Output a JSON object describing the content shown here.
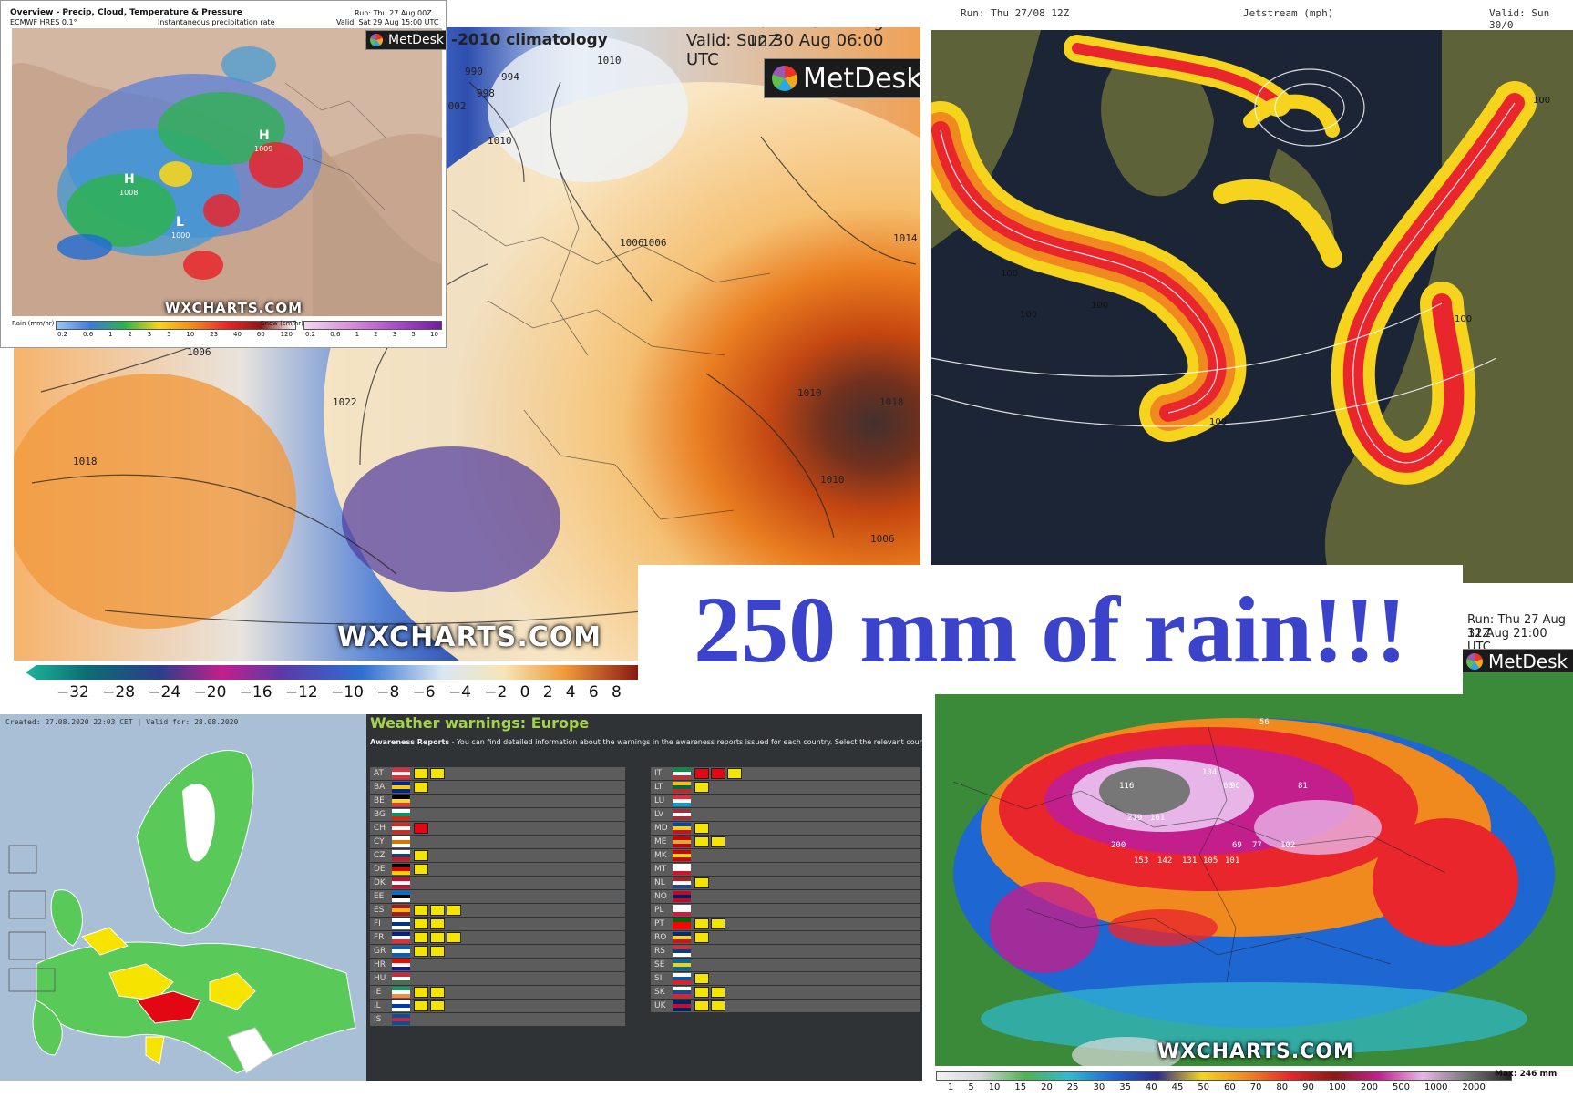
{
  "temp_anomaly_panel": {
    "title_fragment": "-2010 climatology",
    "run": "Run: Thu 27 Aug 12Z",
    "valid": "Valid: Sun 30 Aug 06:00 UTC",
    "logo": "MetDesk",
    "watermark": "WXCHARTS.COM",
    "isobar_labels": [
      "990",
      "994",
      "998",
      "1002",
      "1006",
      "1010",
      "1010",
      "1006",
      "1010",
      "1014",
      "1018",
      "1018",
      "1022",
      "1006",
      "1010",
      "1006"
    ],
    "scale_ticks": [
      "−32",
      "−28",
      "−24",
      "−20",
      "−16",
      "−12",
      "−10",
      "−8",
      "−6",
      "−4",
      "−2",
      "0",
      "2",
      "4",
      "6",
      "8"
    ]
  },
  "precip_inset": {
    "title": "Overview - Precip, Cloud, Temperature & Pressure",
    "subtitle": "ECMWF HRES 0.1°",
    "subtitle2": "Instantaneous precipitation rate",
    "run": "Run: Thu 27 Aug 00Z",
    "valid": "Valid: Sat 29 Aug 15:00 UTC",
    "logo": "MetDesk",
    "watermark": "WXCHARTS.COM",
    "pressure_labels": [
      "H",
      "1009",
      "H",
      "1008",
      "L",
      "1000"
    ],
    "rain_label": "Rain (mm/hr)",
    "snow_label": "Snow (cm/hr)",
    "rain_ticks": [
      "0.2",
      "0.6",
      "1",
      "2",
      "3",
      "5",
      "10",
      "23",
      "40",
      "60",
      "120"
    ],
    "snow_ticks": [
      "0.2",
      "0.6",
      "1",
      "2",
      "3",
      "5",
      "10"
    ]
  },
  "jetstream_panel": {
    "run": "Run: Thu 27/08 12Z",
    "title": "Jetstream (mph)",
    "valid": "Valid: Sun 30/0",
    "labels": [
      "100",
      "100",
      "100",
      "100",
      "100",
      "100"
    ]
  },
  "headline": {
    "text": "250 mm of rain!!!"
  },
  "rain_total_panel": {
    "run": "Run: Thu 27 Aug 12Z",
    "valid": "31 Aug 21:00 UTC",
    "logo": "MetDesk",
    "watermark": "WXCHARTS.COM",
    "max_label": "Max: 246 mm",
    "scale_ticks": [
      "1",
      "5",
      "10",
      "15",
      "20",
      "25",
      "30",
      "35",
      "40",
      "45",
      "50",
      "60",
      "70",
      "80",
      "90",
      "100",
      "200",
      "500",
      "1000",
      "2000"
    ],
    "grid_values": [
      "116",
      "104",
      "219",
      "161",
      "200",
      "153",
      "142",
      "131",
      "105",
      "101",
      "102",
      "81",
      "96",
      "77",
      "69",
      "56",
      "60"
    ]
  },
  "warnings_map": {
    "created": "Created: 27.08.2020 22:03 CET | Valid for: 28.08.2020"
  },
  "warnings_table": {
    "title": "Weather warnings: Europe",
    "intro_bold": "Awareness Reports",
    "intro_text": " - You can find detailed information about the warnings in the awareness reports issued for each country. Select the relevant countr",
    "left": [
      {
        "code": "AT",
        "flag": "#ed2939,#ffffff,#ed2939",
        "warn": "yy"
      },
      {
        "code": "BA",
        "flag": "#002395,#fecb00,#002395",
        "warn": "y"
      },
      {
        "code": "BE",
        "flag": "#000000,#fdda24,#ef3340",
        "warn": ""
      },
      {
        "code": "BG",
        "flag": "#ffffff,#00966e,#d62612",
        "warn": ""
      },
      {
        "code": "CH",
        "flag": "#da291c,#ffffff,#da291c",
        "warn": "r"
      },
      {
        "code": "CY",
        "flag": "#ffffff,#d57800,#ffffff",
        "warn": ""
      },
      {
        "code": "CZ",
        "flag": "#ffffff,#11457e,#d7141a",
        "warn": "y"
      },
      {
        "code": "DE",
        "flag": "#000000,#dd0000,#ffce00",
        "warn": "y"
      },
      {
        "code": "DK",
        "flag": "#c60c30,#ffffff,#c60c30",
        "warn": ""
      },
      {
        "code": "EE",
        "flag": "#0072ce,#000000,#ffffff",
        "warn": ""
      },
      {
        "code": "ES",
        "flag": "#aa151b,#f1bf00,#aa151b",
        "warn": "yyy"
      },
      {
        "code": "FI",
        "flag": "#ffffff,#003580,#ffffff",
        "warn": "yy"
      },
      {
        "code": "FR",
        "flag": "#002395,#ffffff,#ed2939",
        "warn": "yyy"
      },
      {
        "code": "GR",
        "flag": "#0d5eaf,#ffffff,#0d5eaf",
        "warn": "yy"
      },
      {
        "code": "HR",
        "flag": "#ff0000,#ffffff,#171796",
        "warn": ""
      },
      {
        "code": "HU",
        "flag": "#ce2939,#ffffff,#477050",
        "warn": ""
      },
      {
        "code": "IE",
        "flag": "#169b62,#ffffff,#ff883e",
        "warn": "yy"
      },
      {
        "code": "IL",
        "flag": "#ffffff,#0038b8,#ffffff",
        "warn": "yy"
      },
      {
        "code": "IS",
        "flag": "#02529c,#dc1e35,#02529c",
        "warn": ""
      }
    ],
    "right": [
      {
        "code": "IT",
        "flag": "#009246,#ffffff,#ce2b37",
        "warn": "rry"
      },
      {
        "code": "LT",
        "flag": "#fdb913,#006a44,#c1272d",
        "warn": "y"
      },
      {
        "code": "LU",
        "flag": "#ed2939,#ffffff,#00a1de",
        "warn": ""
      },
      {
        "code": "LV",
        "flag": "#9e3039,#ffffff,#9e3039",
        "warn": ""
      },
      {
        "code": "MD",
        "flag": "#0046ae,#ffd200,#cc092f",
        "warn": "y"
      },
      {
        "code": "ME",
        "flag": "#c40308,#d4af37,#c40308",
        "warn": "yy"
      },
      {
        "code": "MK",
        "flag": "#d20000,#ffe600,#d20000",
        "warn": ""
      },
      {
        "code": "MT",
        "flag": "#ffffff,#ffffff,#cf142b",
        "warn": ""
      },
      {
        "code": "NL",
        "flag": "#ae1c28,#ffffff,#21468b",
        "warn": "y"
      },
      {
        "code": "NO",
        "flag": "#ba0c2f,#00205b,#ba0c2f",
        "warn": ""
      },
      {
        "code": "PL",
        "flag": "#ffffff,#ffffff,#dc143c",
        "warn": ""
      },
      {
        "code": "PT",
        "flag": "#006600,#ff0000,#ff0000",
        "warn": "yy"
      },
      {
        "code": "RO",
        "flag": "#002b7f,#fcd116,#ce1126",
        "warn": "y"
      },
      {
        "code": "RS",
        "flag": "#c6363c,#0c4076,#ffffff",
        "warn": ""
      },
      {
        "code": "SE",
        "flag": "#006aa7,#fecc00,#006aa7",
        "warn": ""
      },
      {
        "code": "SI",
        "flag": "#ffffff,#005da4,#ed1c24",
        "warn": "y"
      },
      {
        "code": "SK",
        "flag": "#ffffff,#0b4ea2,#ee1c25",
        "warn": "yy"
      },
      {
        "code": "UK",
        "flag": "#012169,#c8102e,#012169",
        "warn": "yy"
      }
    ]
  }
}
